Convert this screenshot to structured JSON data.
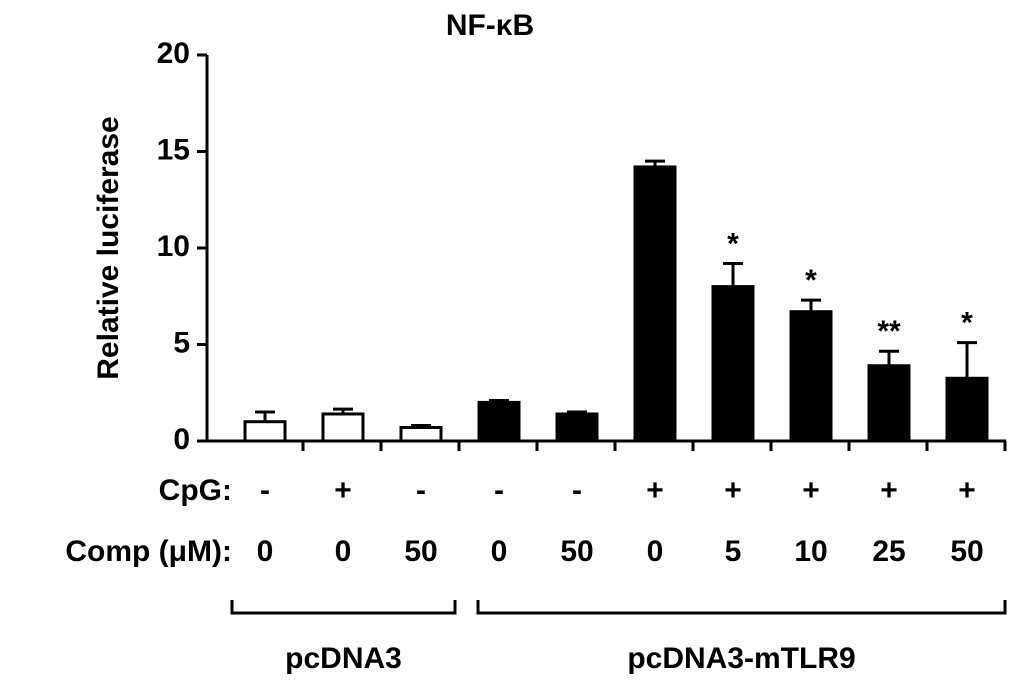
{
  "chart_data": {
    "type": "bar",
    "title": "NF-κB",
    "y_label": "Relative luciferase",
    "ylim": [
      0,
      20
    ],
    "yticks": [
      0,
      5,
      10,
      15,
      20
    ],
    "row_labels": [
      "CpG:",
      "Comp (μM):"
    ],
    "cpg": [
      "-",
      "+",
      "-",
      "-",
      "-",
      "+",
      "+",
      "+",
      "+",
      "+"
    ],
    "comp": [
      "0",
      "0",
      "50",
      "0",
      "50",
      "0",
      "5",
      "10",
      "25",
      "50"
    ],
    "series": [
      {
        "name": "pcDNA3",
        "color": "#ffffff",
        "values": [
          1.0,
          1.4,
          0.7
        ],
        "errors": [
          0.5,
          0.25,
          0.1
        ],
        "annotations": [
          null,
          null,
          null
        ]
      },
      {
        "name": "pcDNA3-mTLR9",
        "color": "#000000",
        "values": [
          2.0,
          1.4,
          14.2,
          8.0,
          6.7,
          3.9,
          3.25
        ],
        "errors": [
          0.1,
          0.1,
          0.3,
          1.2,
          0.6,
          0.75,
          1.85
        ],
        "annotations": [
          null,
          null,
          null,
          "*",
          "*",
          "**",
          "*"
        ]
      }
    ]
  }
}
